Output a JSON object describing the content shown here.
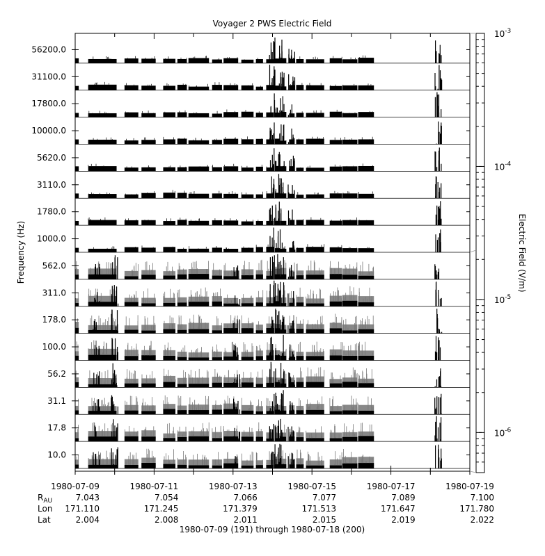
{
  "chart_data": {
    "type": "stacked-spectrogram-strip-chart",
    "title": "Voyager 2 PWS Electric Field",
    "ylabel": "Frequency (Hz)",
    "y2label": "Electric Field (V/m)",
    "xlabel": "1980-07-09 (191) through 1980-07-18 (200)",
    "x_range": [
      "1980-07-09",
      "1980-07-19"
    ],
    "x_ticks": [
      "1980-07-09",
      "1980-07-11",
      "1980-07-13",
      "1980-07-15",
      "1980-07-17",
      "1980-07-19"
    ],
    "ephemeris_rows": [
      {
        "label": "R",
        "subscript": "AU",
        "values": [
          "7.043",
          "7.054",
          "7.066",
          "7.077",
          "7.089",
          "7.100"
        ]
      },
      {
        "label": "Lon",
        "values": [
          "171.110",
          "171.245",
          "171.379",
          "171.513",
          "171.647",
          "171.780"
        ]
      },
      {
        "label": "Lat",
        "values": [
          "2.004",
          "2.008",
          "2.011",
          "2.015",
          "2.019",
          "2.022"
        ]
      }
    ],
    "channels": [
      "56200.0",
      "31100.0",
      "17800.0",
      "10000.0",
      "5620.0",
      "3110.0",
      "1780.0",
      "1000.0",
      "562.0",
      "311.0",
      "178.0",
      "100.0",
      "56.2",
      "31.1",
      "17.8",
      "10.0"
    ],
    "colorbar": {
      "scale": "log",
      "range": [
        5e-07,
        0.001
      ],
      "tick_labels": [
        {
          "base": "10",
          "exp": "-3",
          "value": 0.001
        },
        {
          "base": "10",
          "exp": "-4",
          "value": 0.0001
        },
        {
          "base": "10",
          "exp": "-5",
          "value": 1e-05
        },
        {
          "base": "10",
          "exp": "-6",
          "value": 1e-06
        }
      ]
    },
    "data_segments_days": [
      [
        0.0,
        0.09
      ],
      [
        0.33,
        1.05
      ],
      [
        1.25,
        1.6
      ],
      [
        1.68,
        2.04
      ],
      [
        2.23,
        2.54
      ],
      [
        2.59,
        2.83
      ],
      [
        2.87,
        3.39
      ],
      [
        3.47,
        3.72
      ],
      [
        3.76,
        4.13
      ],
      [
        4.21,
        4.52
      ],
      [
        4.58,
        4.76
      ],
      [
        4.84,
        5.03
      ],
      [
        5.06,
        5.19
      ],
      [
        5.19,
        5.35
      ],
      [
        5.42,
        5.56
      ],
      [
        5.6,
        5.79
      ],
      [
        5.85,
        6.31
      ],
      [
        6.45,
        6.76
      ],
      [
        6.77,
        7.15
      ],
      [
        7.17,
        7.57
      ]
    ],
    "bursts": [
      {
        "day": 5.01,
        "channels": "all",
        "strength": "high"
      },
      {
        "day": 5.21,
        "channels": "all",
        "strength": "high"
      },
      {
        "day": 5.48,
        "channels": "all",
        "strength": "medium"
      },
      {
        "day": 9.2,
        "channels": "all",
        "strength": "high"
      },
      {
        "day": 0.54,
        "channels": "low",
        "strength": "medium"
      },
      {
        "day": 1.0,
        "channels": "low",
        "strength": "high"
      },
      {
        "day": 4.09,
        "channels": "low",
        "strength": "medium"
      }
    ]
  }
}
